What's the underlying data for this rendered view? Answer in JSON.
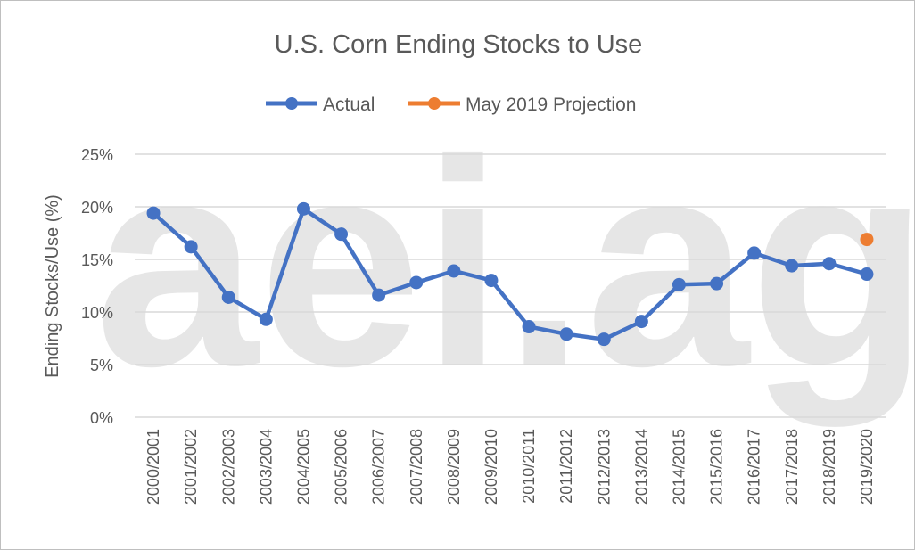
{
  "chart_data": {
    "type": "line",
    "title": "U.S. Corn Ending Stocks to Use",
    "xlabel": "",
    "ylabel": "Ending Stocks/Use (%)",
    "watermark": "aei.ag",
    "categories": [
      "2000/2001",
      "2001/2002",
      "2002/2003",
      "2003/2004",
      "2004/2005",
      "2005/2006",
      "2006/2007",
      "2007/2008",
      "2008/2009",
      "2009/2010",
      "2010/2011",
      "2011/2012",
      "2012/2013",
      "2013/2014",
      "2014/2015",
      "2015/2016",
      "2016/2017",
      "2017/2018",
      "2018/2019",
      "2019/2020"
    ],
    "series": [
      {
        "name": "Actual",
        "color": "#4472c4",
        "values": [
          19.4,
          16.2,
          11.4,
          9.3,
          19.8,
          17.4,
          11.6,
          12.8,
          13.9,
          13.0,
          8.6,
          7.9,
          7.4,
          9.1,
          12.6,
          12.7,
          15.6,
          14.4,
          14.6,
          13.6
        ]
      },
      {
        "name": "May 2019 Projection",
        "color": "#ed7d31",
        "values": [
          null,
          null,
          null,
          null,
          null,
          null,
          null,
          null,
          null,
          null,
          null,
          null,
          null,
          null,
          null,
          null,
          null,
          null,
          null,
          16.9
        ]
      }
    ],
    "ylim": [
      0,
      25
    ],
    "yticks": [
      0,
      5,
      10,
      15,
      20,
      25
    ],
    "ytick_labels": [
      "0%",
      "5%",
      "10%",
      "15%",
      "20%",
      "25%"
    ],
    "grid": true,
    "legend_position": "top-center"
  }
}
